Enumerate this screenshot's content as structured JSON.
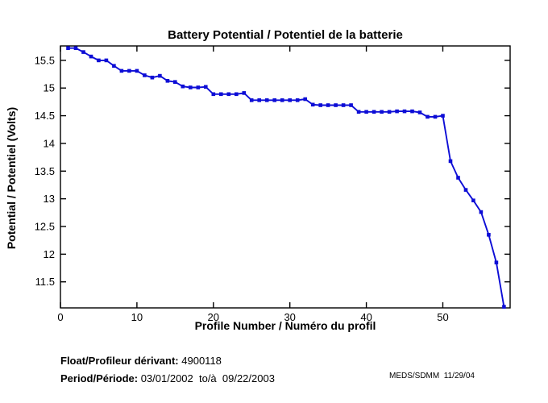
{
  "chart_data": {
    "type": "line",
    "title": "Battery Potential / Potentiel de la batterie",
    "xlabel": "Profile Number / Numéro du profil",
    "ylabel": "Potential / Potentiel (Volts)",
    "line_color": "#0d0dd6",
    "marker": "square",
    "grid": false,
    "box": true,
    "tick_direction": "in",
    "legend_position": "none",
    "xlim": [
      0,
      58.8
    ],
    "ylim": [
      11.03,
      15.76
    ],
    "xticks": [
      0,
      10,
      20,
      30,
      40,
      50
    ],
    "yticks": [
      11.5,
      12,
      12.5,
      13,
      13.5,
      14,
      14.5,
      15,
      15.5
    ],
    "x": [
      1,
      2,
      3,
      4,
      5,
      6,
      7,
      8,
      9,
      10,
      11,
      12,
      13,
      14,
      15,
      16,
      17,
      18,
      19,
      20,
      21,
      22,
      23,
      24,
      25,
      26,
      27,
      28,
      29,
      30,
      31,
      32,
      33,
      34,
      35,
      36,
      37,
      38,
      39,
      40,
      41,
      42,
      43,
      44,
      45,
      46,
      47,
      48,
      49,
      50,
      51,
      52,
      53,
      54,
      55,
      56,
      57,
      58
    ],
    "series": [
      {
        "name": "Battery Potential (Volts)",
        "values": [
          15.72,
          15.72,
          15.65,
          15.57,
          15.5,
          15.5,
          15.4,
          15.31,
          15.31,
          15.31,
          15.23,
          15.19,
          15.22,
          15.13,
          15.11,
          15.03,
          15.01,
          15.01,
          15.02,
          14.89,
          14.89,
          14.89,
          14.89,
          14.91,
          14.78,
          14.78,
          14.78,
          14.78,
          14.78,
          14.78,
          14.78,
          14.8,
          14.7,
          14.69,
          14.69,
          14.69,
          14.69,
          14.69,
          14.57,
          14.57,
          14.57,
          14.57,
          14.57,
          14.58,
          14.58,
          14.58,
          14.56,
          14.48,
          14.48,
          14.5,
          13.68,
          13.38,
          13.16,
          12.97,
          12.76,
          12.35,
          11.85,
          11.05
        ]
      }
    ]
  },
  "footer": {
    "float": {
      "label": "Float/Profileur dérivant:",
      "value": " 4900118"
    },
    "period": {
      "label": "Period/Période:",
      "value": " 03/01/2002  to/à  09/22/2003"
    },
    "stamp": "MEDS/SDMM  11/29/04"
  }
}
